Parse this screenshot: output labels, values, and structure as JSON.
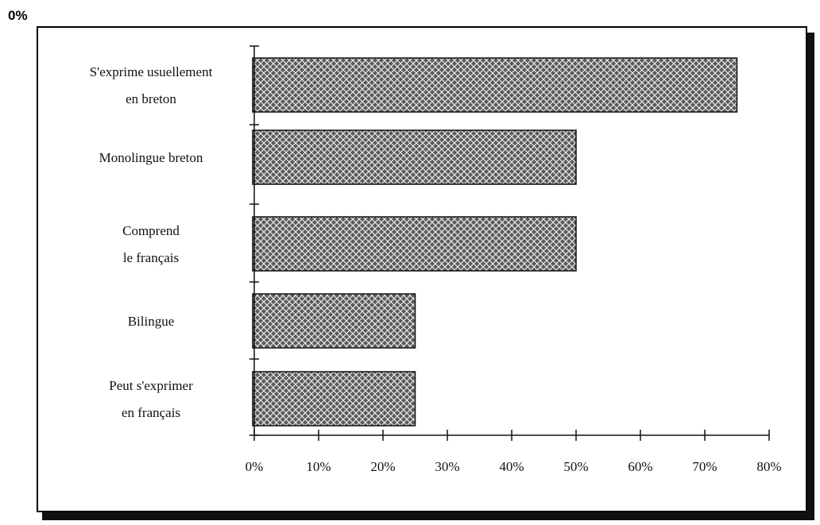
{
  "corner_label": "0%",
  "chart_data": {
    "type": "bar",
    "orientation": "horizontal",
    "categories": [
      [
        "S'exprime usuellement",
        "en breton"
      ],
      [
        "Monolingue breton"
      ],
      [
        "Comprend",
        "le français"
      ],
      [
        "Bilingue"
      ],
      [
        "Peut s'exprimer",
        "en français"
      ]
    ],
    "values": [
      75,
      50,
      50,
      25,
      25
    ],
    "xlim": [
      0,
      80
    ],
    "ticks": [
      0,
      10,
      20,
      30,
      40,
      50,
      60,
      70,
      80
    ],
    "tick_labels": [
      "0%",
      "10%",
      "20%",
      "30%",
      "40%",
      "50%",
      "60%",
      "70%",
      "80%"
    ],
    "grid": false,
    "bar_fill": "#555555",
    "title": "",
    "xlabel": "",
    "ylabel": ""
  }
}
